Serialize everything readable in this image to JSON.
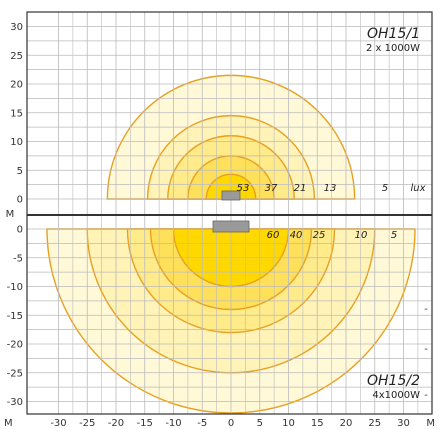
{
  "chart_data": {
    "type": "isolux",
    "x_unit": "M",
    "y_unit": "M",
    "x_ticks": [
      -30,
      -25,
      -20,
      -15,
      -10,
      -5,
      0,
      5,
      10,
      15,
      20,
      25,
      30
    ],
    "panels": [
      {
        "id": "top",
        "model": "OH15/1",
        "spec": "2 x 1000W",
        "unit_label": "lux",
        "y_ticks": [
          0,
          5,
          10,
          15,
          20,
          25,
          30
        ],
        "contours": [
          {
            "lux": 5,
            "label": "5",
            "radius": 21.5,
            "color": "#fff9d8"
          },
          {
            "lux": 13,
            "label": "13",
            "radius": 14.5,
            "color": "#fff3b8"
          },
          {
            "lux": 21,
            "label": "21",
            "radius": 11,
            "color": "#ffeb8a"
          },
          {
            "lux": 37,
            "label": "37",
            "radius": 7.5,
            "color": "#ffe05a"
          },
          {
            "lux": 53,
            "label": "53",
            "radius": 4.3,
            "color": "#ffd800"
          }
        ],
        "annotations": []
      },
      {
        "id": "bottom",
        "model": "OH15/2",
        "spec": "4x1000W",
        "unit_label": "",
        "y_ticks": [
          0,
          -5,
          -10,
          -15,
          -20,
          -25,
          -30
        ],
        "contours": [
          {
            "lux": 5,
            "label": "5",
            "radius": 32,
            "color": "#fff9d8"
          },
          {
            "lux": 10,
            "label": "10",
            "radius": 25,
            "color": "#fff3b8"
          },
          {
            "lux": 25,
            "label": "25",
            "radius": 18,
            "color": "#ffeb8a"
          },
          {
            "lux": 40,
            "label": "40",
            "radius": 14,
            "color": "#ffe05a"
          },
          {
            "lux": 60,
            "label": "60",
            "radius": 10,
            "color": "#ffd800"
          }
        ],
        "annotations": [
          "-",
          "-",
          "-"
        ]
      }
    ],
    "colors": {
      "contour_line": "#e8a020",
      "grid": "#bbbbbb",
      "frame": "#333333",
      "luminaire": "#9a9a9a"
    }
  }
}
